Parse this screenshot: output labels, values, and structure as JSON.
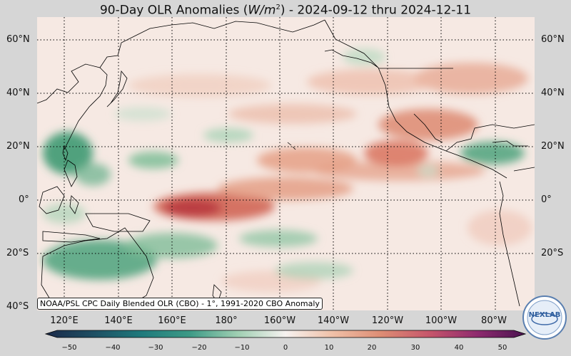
{
  "title_prefix": "90-Day OLR Anomalies (",
  "title_unit_base": "W/m",
  "title_unit_exp": "2",
  "title_suffix": ") - 2024-09-12 thru 2024-12-11",
  "credit": "NOAA/PSL CPC Daily Blended OLR (CBO) - 1°, 1991-2020 CBO Anomaly",
  "logo_text": "NEXLAB",
  "lat_labels": [
    "60°N",
    "40°N",
    "20°N",
    "0°",
    "20°S",
    "40°S"
  ],
  "lon_labels": [
    "120°E",
    "140°E",
    "160°E",
    "180°",
    "160°W",
    "140°W",
    "120°W",
    "100°W",
    "80°W"
  ],
  "colorbar": {
    "ticks": [
      "−50",
      "−40",
      "−30",
      "−20",
      "−10",
      "0",
      "10",
      "20",
      "30",
      "40",
      "50"
    ],
    "colors_negative": [
      "#1b2a4a",
      "#1e4f63",
      "#1f7a7c",
      "#3d9a86",
      "#7fbf9e",
      "#e8f0ea"
    ],
    "colors_positive": [
      "#f7ece6",
      "#efbfa6",
      "#dd8c74",
      "#c6566b",
      "#8e2a6e",
      "#4a1350"
    ]
  },
  "colors": {
    "ocean_base": "#f6e9e3",
    "positive_anomaly": "#d9755e",
    "negative_anomaly": "#3d9a72",
    "coastline": "#000000",
    "grid": "#000000"
  }
}
